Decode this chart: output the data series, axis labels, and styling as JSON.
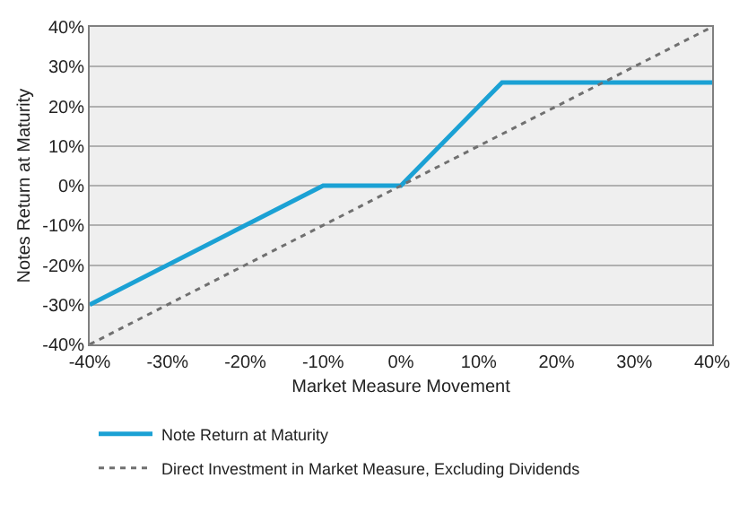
{
  "chart_data": {
    "type": "line",
    "xlabel": "Market Measure Movement",
    "ylabel": "Notes Return at Maturity",
    "series": [
      {
        "name": "Note Return at Maturity",
        "color": "#1ba1d4",
        "line_style": "solid",
        "x": [
          -40,
          -10,
          0,
          13,
          40
        ],
        "values": [
          -30,
          0,
          0,
          26,
          26
        ]
      },
      {
        "name": "Direct Investment in Market Measure, Excluding Dividends",
        "color": "#707070",
        "line_style": "dotted",
        "x": [
          -40,
          40
        ],
        "values": [
          -40,
          40
        ]
      }
    ],
    "xlim": [
      -40,
      40
    ],
    "ylim": [
      -40,
      40
    ],
    "xticks": [
      {
        "value": -40,
        "label": "-40%"
      },
      {
        "value": -30,
        "label": "-30%"
      },
      {
        "value": -20,
        "label": "-20%"
      },
      {
        "value": -10,
        "label": "-10%"
      },
      {
        "value": 0,
        "label": "0%"
      },
      {
        "value": 10,
        "label": "10%"
      },
      {
        "value": 20,
        "label": "20%"
      },
      {
        "value": 30,
        "label": "30%"
      },
      {
        "value": 40,
        "label": "40%"
      }
    ],
    "yticks": [
      {
        "value": -40,
        "label": "-40%"
      },
      {
        "value": -30,
        "label": "-30%"
      },
      {
        "value": -20,
        "label": "-20%"
      },
      {
        "value": -10,
        "label": "-10%"
      },
      {
        "value": 0,
        "label": "0%"
      },
      {
        "value": 10,
        "label": "10%"
      },
      {
        "value": 20,
        "label": "20%"
      },
      {
        "value": 30,
        "label": "30%"
      },
      {
        "value": 40,
        "label": "40%"
      }
    ],
    "grid": "y",
    "legend": "bottom",
    "marker": "none"
  }
}
